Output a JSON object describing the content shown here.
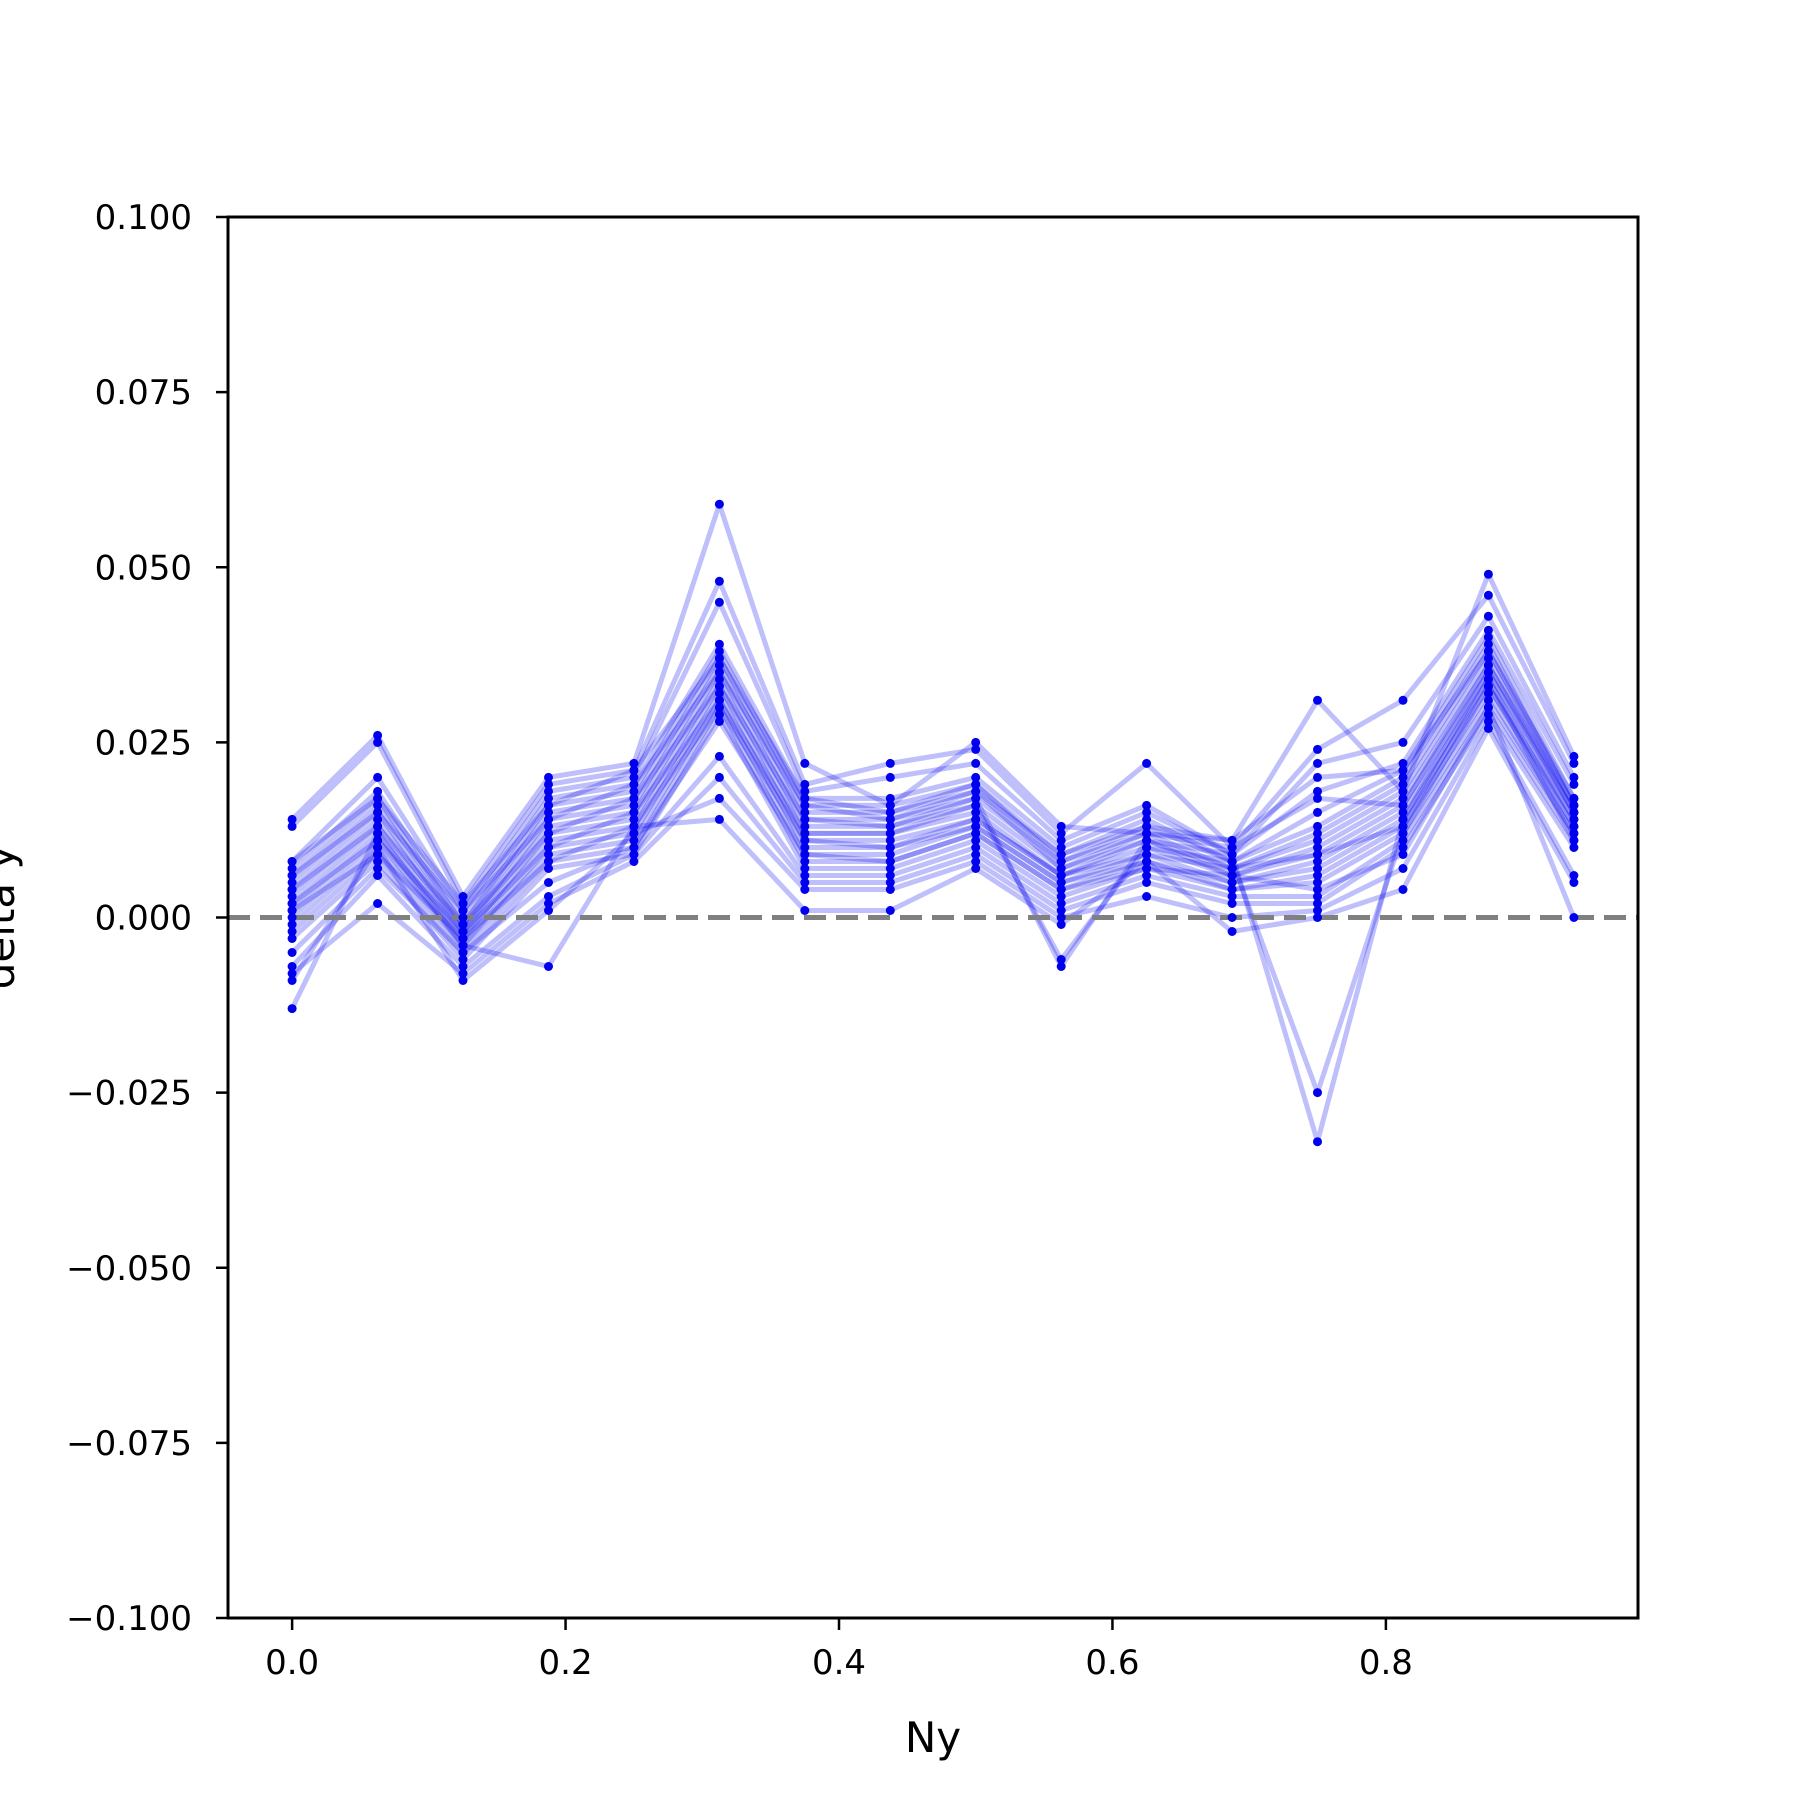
{
  "chart_data": {
    "type": "line",
    "title": "",
    "xlabel": "Ny",
    "ylabel": "delta y",
    "xlim": [
      -0.0469,
      0.9844
    ],
    "ylim": [
      -0.1,
      0.1
    ],
    "xticks": [
      0.0,
      0.2,
      0.4,
      0.6,
      0.8
    ],
    "xtick_labels": [
      "0.0",
      "0.2",
      "0.4",
      "0.6",
      "0.8"
    ],
    "yticks": [
      0.1,
      0.075,
      0.05,
      0.025,
      0.0,
      -0.025,
      -0.05,
      -0.075,
      -0.1
    ],
    "ytick_labels": [
      "0.100",
      "0.075",
      "0.050",
      "0.025",
      "0.000",
      "−0.025",
      "−0.050",
      "−0.075",
      "−0.100"
    ],
    "grid": false,
    "reference_line": {
      "y": 0.0,
      "style": "dashed",
      "color": "#808080"
    },
    "series_color": "#0000ee",
    "line_alpha": 0.25,
    "x": [
      0.0,
      0.0625,
      0.125,
      0.1875,
      0.25,
      0.3125,
      0.375,
      0.4375,
      0.5,
      0.5625,
      0.625,
      0.6875,
      0.75,
      0.8125,
      0.875,
      0.9375
    ],
    "series": [
      {
        "values": [
          0.014,
          0.026,
          0.003,
          0.02,
          0.022,
          0.059,
          0.022,
          0.016,
          0.025,
          0.013,
          0.012,
          0.011,
          0.031,
          0.018,
          0.049,
          0.023
        ]
      },
      {
        "values": [
          0.013,
          0.025,
          0.002,
          0.019,
          0.021,
          0.048,
          0.019,
          0.022,
          0.024,
          0.012,
          0.022,
          0.01,
          0.024,
          0.031,
          0.046,
          0.022
        ]
      },
      {
        "values": [
          0.008,
          0.02,
          0.001,
          0.018,
          0.02,
          0.045,
          0.018,
          0.02,
          0.022,
          0.011,
          0.016,
          0.009,
          0.022,
          0.025,
          0.043,
          0.02
        ]
      },
      {
        "values": [
          0.007,
          0.018,
          0.0,
          0.017,
          0.019,
          0.039,
          0.017,
          0.017,
          0.02,
          0.01,
          0.015,
          0.009,
          0.018,
          0.022,
          0.041,
          0.019
        ]
      },
      {
        "values": [
          0.006,
          0.017,
          -0.001,
          0.016,
          0.018,
          0.038,
          0.016,
          0.016,
          0.019,
          0.009,
          0.014,
          0.008,
          0.015,
          0.021,
          0.04,
          0.017
        ]
      },
      {
        "values": [
          0.005,
          0.016,
          -0.001,
          0.015,
          0.017,
          0.037,
          0.015,
          0.015,
          0.018,
          0.009,
          0.013,
          0.008,
          0.013,
          0.02,
          0.039,
          0.016
        ]
      },
      {
        "values": [
          0.004,
          0.015,
          -0.002,
          0.014,
          0.016,
          0.036,
          0.014,
          0.014,
          0.017,
          0.008,
          0.012,
          0.007,
          0.012,
          0.019,
          0.038,
          0.016
        ]
      },
      {
        "values": [
          0.003,
          0.014,
          -0.002,
          0.013,
          0.015,
          0.035,
          0.013,
          0.013,
          0.016,
          0.007,
          0.011,
          0.007,
          0.011,
          0.018,
          0.037,
          0.015
        ]
      },
      {
        "values": [
          0.002,
          0.013,
          -0.003,
          0.012,
          0.014,
          0.034,
          0.012,
          0.012,
          0.015,
          0.006,
          0.011,
          0.006,
          0.01,
          0.017,
          0.036,
          0.015
        ]
      },
      {
        "values": [
          0.001,
          0.012,
          -0.003,
          0.011,
          0.013,
          0.033,
          0.011,
          0.011,
          0.014,
          0.006,
          0.01,
          0.006,
          0.009,
          0.016,
          0.035,
          0.014
        ]
      },
      {
        "values": [
          0.0,
          0.011,
          -0.004,
          0.01,
          0.012,
          0.032,
          0.01,
          0.01,
          0.013,
          0.005,
          0.009,
          0.005,
          0.008,
          0.015,
          0.034,
          0.013
        ]
      },
      {
        "values": [
          -0.001,
          0.01,
          -0.004,
          0.009,
          0.011,
          0.031,
          0.009,
          0.009,
          0.013,
          0.005,
          0.008,
          0.005,
          0.007,
          0.014,
          0.033,
          0.013
        ]
      },
      {
        "values": [
          -0.002,
          0.009,
          -0.005,
          0.008,
          0.01,
          0.03,
          0.008,
          0.008,
          0.012,
          0.004,
          0.008,
          0.004,
          0.006,
          0.013,
          0.032,
          0.012
        ]
      },
      {
        "values": [
          -0.003,
          0.008,
          -0.006,
          0.007,
          0.009,
          0.029,
          0.007,
          0.007,
          0.011,
          0.003,
          0.007,
          0.004,
          0.005,
          0.012,
          0.031,
          0.012
        ]
      },
      {
        "values": [
          -0.007,
          0.006,
          -0.007,
          0.003,
          0.009,
          0.023,
          0.006,
          0.006,
          0.01,
          0.002,
          0.006,
          0.003,
          0.003,
          0.011,
          0.03,
          0.011
        ]
      },
      {
        "values": [
          -0.008,
          0.002,
          -0.008,
          0.002,
          0.008,
          0.02,
          0.005,
          0.005,
          0.009,
          0.001,
          0.005,
          0.002,
          0.002,
          0.01,
          0.029,
          0.01
        ]
      },
      {
        "values": [
          -0.009,
          0.01,
          -0.009,
          0.001,
          0.012,
          0.017,
          0.004,
          0.004,
          0.008,
          0.0,
          0.003,
          0.0,
          0.001,
          0.007,
          0.028,
          0.006
        ]
      },
      {
        "values": [
          -0.013,
          0.012,
          -0.004,
          -0.007,
          0.013,
          0.014,
          0.001,
          0.001,
          0.007,
          -0.001,
          0.008,
          -0.002,
          0.0,
          0.004,
          0.027,
          0.005
        ]
      },
      {
        "values": [
          0.002,
          0.011,
          -0.002,
          0.01,
          0.015,
          0.031,
          0.012,
          0.012,
          0.016,
          -0.006,
          0.01,
          0.008,
          -0.025,
          0.012,
          0.033,
          0.014
        ]
      },
      {
        "values": [
          0.004,
          0.013,
          -0.001,
          0.012,
          0.017,
          0.033,
          0.014,
          0.013,
          0.017,
          -0.007,
          0.011,
          0.009,
          -0.032,
          0.014,
          0.035,
          0.015
        ]
      },
      {
        "values": [
          0.006,
          0.015,
          0.001,
          0.014,
          0.019,
          0.035,
          0.016,
          0.014,
          0.018,
          0.007,
          0.012,
          0.01,
          0.017,
          0.016,
          0.036,
          0.016
        ]
      },
      {
        "values": [
          0.008,
          0.017,
          0.002,
          0.016,
          0.021,
          0.037,
          0.017,
          0.015,
          0.019,
          0.008,
          0.013,
          0.011,
          0.02,
          0.021,
          0.038,
          0.017
        ]
      },
      {
        "values": [
          -0.005,
          0.007,
          -0.005,
          0.005,
          0.01,
          0.028,
          0.009,
          0.008,
          0.012,
          0.004,
          0.007,
          0.006,
          0.004,
          0.009,
          0.03,
          0.0
        ]
      },
      {
        "values": [
          0.001,
          0.009,
          -0.003,
          0.008,
          0.013,
          0.03,
          0.011,
          0.01,
          0.014,
          0.006,
          0.009,
          0.007,
          0.009,
          0.013,
          0.034,
          0.011
        ]
      }
    ]
  }
}
